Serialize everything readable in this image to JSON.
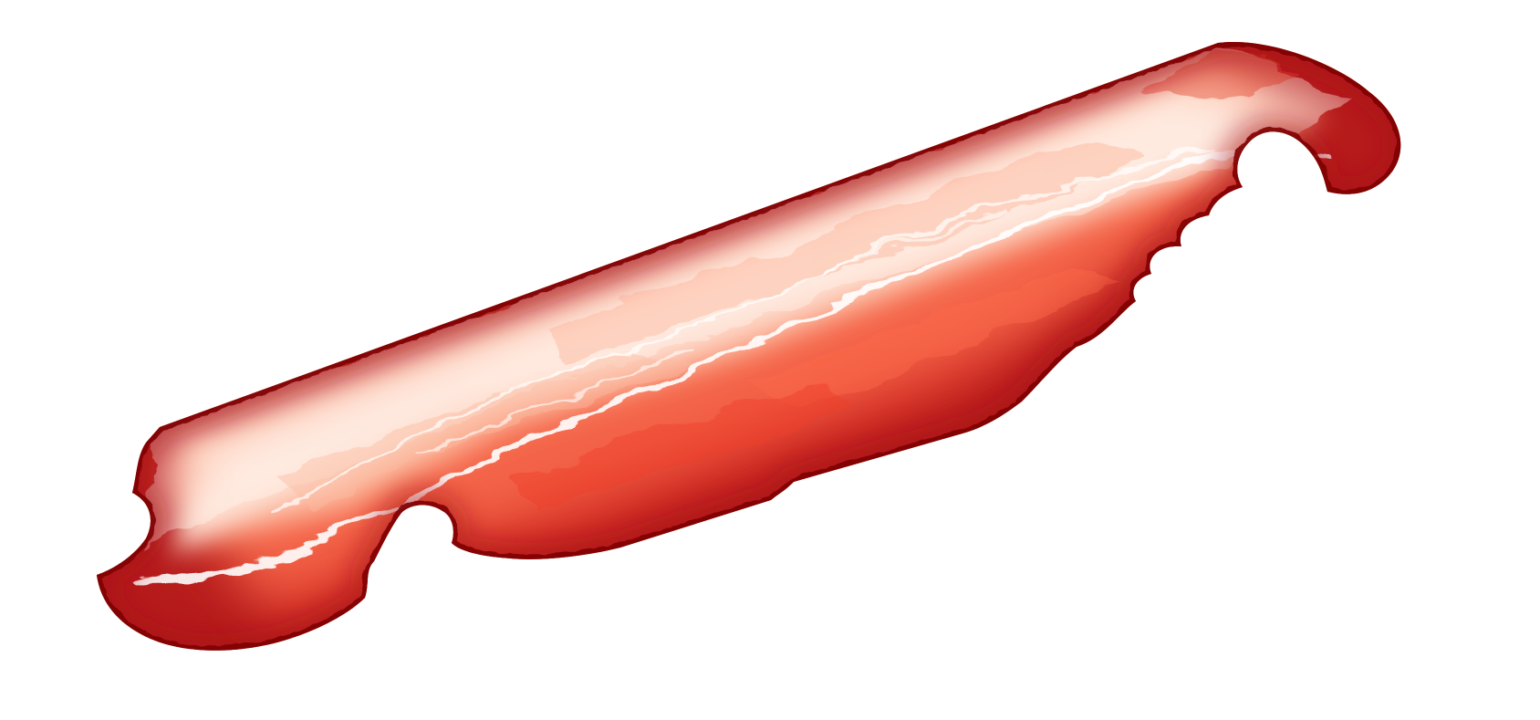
{
  "figure": {
    "kind": "heatmap-field",
    "colormap": "Reds",
    "colors": {
      "background": "#ffffff",
      "low": "#fff5f0",
      "mid_light": "#fcbba1",
      "mid": "#fb6a4a",
      "high": "#cb181d",
      "max": "#67000d"
    }
  }
}
